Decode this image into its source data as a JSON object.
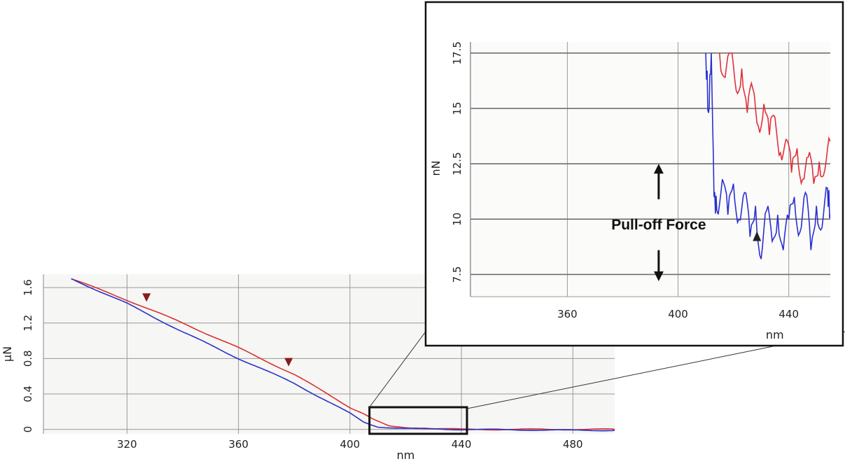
{
  "chart_data": [
    {
      "id": "main",
      "type": "line",
      "title": "",
      "xlabel": "nm",
      "ylabel": "µN",
      "xlim": [
        290,
        495
      ],
      "ylim": [
        -0.05,
        1.75
      ],
      "xticks": [
        320,
        360,
        400,
        440,
        480
      ],
      "yticks": [
        0,
        0.4,
        0.8,
        1.2,
        1.6
      ],
      "grid": true,
      "series": [
        {
          "color": "#d93030",
          "x": [
            300,
            320,
            340,
            360,
            380,
            400,
            408,
            414,
            420,
            440,
            480,
            495
          ],
          "y": [
            1.7,
            1.46,
            1.2,
            0.92,
            0.62,
            0.25,
            0.12,
            0.04,
            0.02,
            0.0,
            0.0,
            0.0
          ]
        },
        {
          "color": "#2a30c8",
          "x": [
            300,
            320,
            340,
            360,
            380,
            400,
            405,
            410,
            420,
            440,
            480,
            495
          ],
          "y": [
            1.7,
            1.42,
            1.1,
            0.8,
            0.52,
            0.18,
            0.08,
            0.03,
            0.01,
            0.0,
            -0.01,
            -0.01
          ]
        }
      ],
      "markers": [
        {
          "x": 327,
          "y": 1.48,
          "color": "#8b1a1a"
        },
        {
          "x": 378,
          "y": 0.75,
          "color": "#8b1a1a"
        }
      ],
      "zoom_box": {
        "x": [
          407,
          442
        ],
        "y": [
          -0.05,
          0.25
        ]
      }
    },
    {
      "id": "inset",
      "type": "line",
      "title": "",
      "xlabel": "nm",
      "ylabel": "nN",
      "xlim": [
        325,
        455
      ],
      "ylim": [
        6.5,
        18
      ],
      "xticks": [
        360,
        400,
        440
      ],
      "yticks": [
        7.5,
        10,
        12.5,
        15,
        17.5
      ],
      "grid": true,
      "series": [
        {
          "color": "#e0303a",
          "x": [
            415,
            417,
            419,
            421,
            423,
            425,
            427,
            429,
            431,
            433,
            435,
            437,
            439,
            441,
            443,
            445,
            447,
            449,
            451,
            453,
            455
          ],
          "y": [
            17.5,
            16.4,
            17.5,
            15.8,
            16.8,
            14.8,
            15.9,
            14.2,
            15.2,
            13.8,
            14.6,
            13.0,
            13.6,
            12.1,
            13.2,
            11.8,
            12.8,
            11.6,
            12.6,
            12.2,
            13.5
          ]
        },
        {
          "color": "#2a30d0",
          "x": [
            410,
            411,
            412,
            413,
            414,
            416,
            418,
            420,
            422,
            424,
            426,
            428,
            430,
            432,
            434,
            436,
            438,
            440,
            442,
            444,
            446,
            448,
            450,
            452,
            454,
            455
          ],
          "y": [
            17.5,
            14.8,
            17.5,
            11.0,
            10.4,
            11.8,
            10.2,
            11.6,
            10.0,
            11.2,
            9.2,
            10.6,
            8.2,
            10.4,
            9.0,
            10.2,
            8.6,
            10.0,
            11.0,
            9.4,
            11.2,
            8.6,
            10.6,
            9.6,
            11.4,
            10.2
          ]
        }
      ],
      "annotation": {
        "text": "Pull-off Force"
      }
    }
  ]
}
